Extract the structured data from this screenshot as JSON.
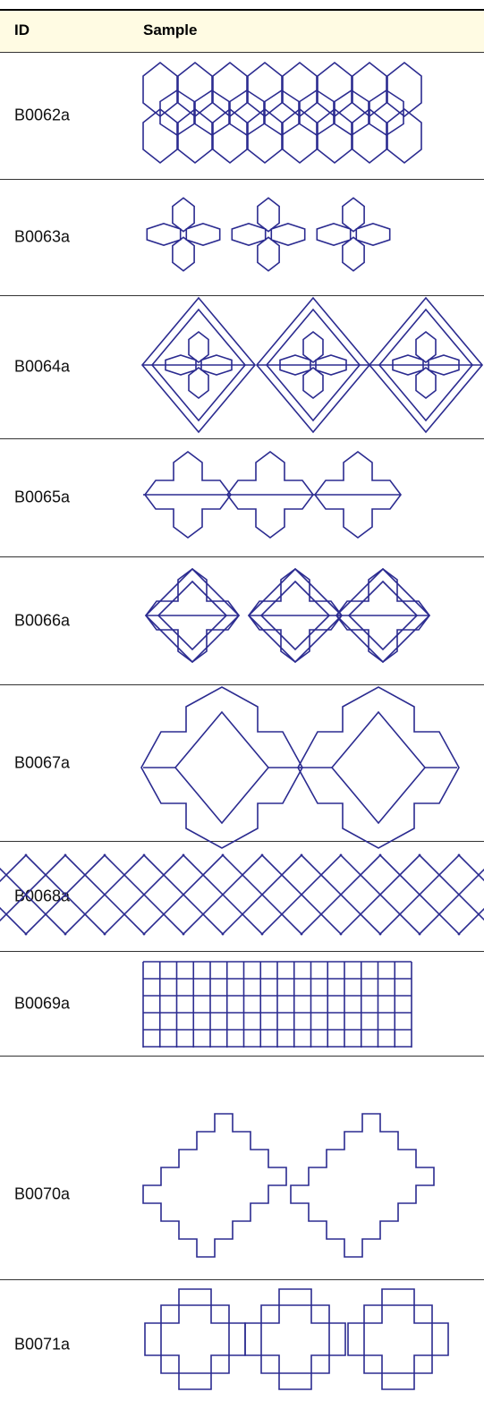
{
  "header": {
    "columns": [
      "ID",
      "Sample"
    ]
  },
  "table": {
    "rows": [
      "B0062a",
      "B0063a",
      "B0064a",
      "B0065a",
      "B0066a",
      "B0067a",
      "B0068a",
      "B0069a",
      "B0070a",
      "B0071a"
    ]
  }
}
